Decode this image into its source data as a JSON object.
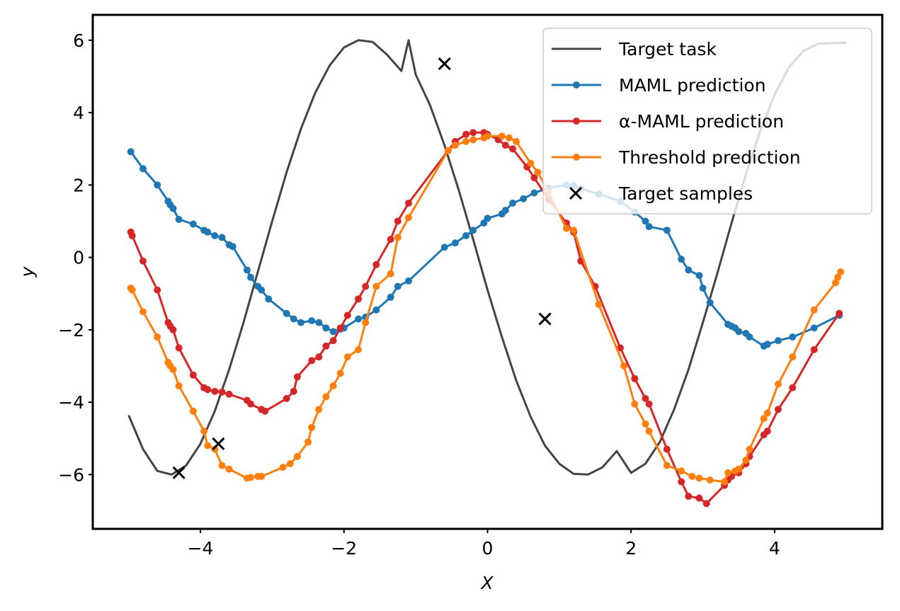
{
  "chart_data": {
    "type": "line",
    "title": "",
    "xlabel": "X",
    "ylabel": "y",
    "xlim": [
      -5.5,
      5.5
    ],
    "ylim": [
      -7.5,
      6.7
    ],
    "x_ticks": [
      -4,
      -2,
      0,
      2,
      4
    ],
    "y_ticks": [
      -6,
      -4,
      -2,
      0,
      2,
      4,
      6
    ],
    "x_tick_labels": [
      "−4",
      "−2",
      "0",
      "2",
      "4"
    ],
    "y_tick_labels": [
      "−6",
      "−4",
      "−2",
      "0",
      "2",
      "4",
      "6"
    ],
    "grid": false,
    "legend_position": "top-right",
    "target_task": {
      "name": "Target task",
      "color": "#444444",
      "x": [
        -5.0,
        -4.8,
        -4.6,
        -4.4,
        -4.2,
        -4.0,
        -3.8,
        -3.6,
        -3.4,
        -3.2,
        -3.0,
        -2.8,
        -2.6,
        -2.4,
        -2.2,
        -2.0,
        -1.8,
        -1.6,
        -1.4,
        -1.2,
        -1.1,
        -1.0,
        -0.8,
        -0.6,
        -0.4,
        -0.2,
        0.0,
        0.2,
        0.4,
        0.6,
        0.8,
        1.0,
        1.2,
        1.4,
        1.6,
        1.8,
        2.0,
        2.2,
        2.4,
        2.6,
        2.8,
        3.0,
        3.2,
        3.4,
        3.6,
        3.8,
        4.0,
        4.2,
        4.4,
        4.6,
        4.8,
        5.0
      ],
      "y": [
        -4.36,
        -5.3,
        -5.9,
        -6.0,
        -5.75,
        -5.15,
        -4.25,
        -3.1,
        -1.8,
        -0.4,
        1.0,
        2.35,
        3.55,
        4.55,
        5.3,
        5.8,
        6.0,
        5.95,
        5.6,
        5.15,
        6.0,
        5.05,
        4.2,
        3.1,
        1.85,
        0.5,
        -0.9,
        -2.2,
        -3.4,
        -4.4,
        -5.2,
        -5.7,
        -5.98,
        -6.0,
        -5.8,
        -5.35,
        -5.95,
        -5.7,
        -5.1,
        -4.2,
        -3.1,
        -1.8,
        -0.45,
        0.95,
        2.3,
        3.5,
        4.5,
        5.25,
        5.7,
        5.9,
        5.92,
        5.93
      ]
    },
    "series": [
      {
        "name": "MAML prediction",
        "color": "#1f77b4",
        "x": [
          -4.97,
          -4.8,
          -4.6,
          -4.45,
          -4.42,
          -4.38,
          -4.3,
          -4.1,
          -3.95,
          -3.9,
          -3.8,
          -3.7,
          -3.6,
          -3.55,
          -3.35,
          -3.3,
          -3.2,
          -3.15,
          -3.05,
          -2.8,
          -2.7,
          -2.6,
          -2.45,
          -2.35,
          -2.25,
          -2.15,
          -2.05,
          -2.0,
          -1.8,
          -1.7,
          -1.55,
          -1.35,
          -1.25,
          -1.1,
          -0.6,
          -0.45,
          -0.3,
          -0.2,
          -0.05,
          0.0,
          0.2,
          0.25,
          0.35,
          0.5,
          0.65,
          0.85,
          1.1,
          1.2,
          1.3,
          1.55,
          1.85,
          2.05,
          2.2,
          2.25,
          2.5,
          2.7,
          2.8,
          2.95,
          3.0,
          3.1,
          3.35,
          3.4,
          3.45,
          3.5,
          3.6,
          3.65,
          3.85,
          3.9,
          4.05,
          4.25,
          4.55,
          4.9
        ],
        "y": [
          2.92,
          2.45,
          2.0,
          1.55,
          1.45,
          1.35,
          1.05,
          0.92,
          0.75,
          0.7,
          0.6,
          0.55,
          0.35,
          0.3,
          -0.35,
          -0.55,
          -0.8,
          -0.9,
          -1.15,
          -1.55,
          -1.7,
          -1.8,
          -1.75,
          -1.8,
          -1.95,
          -2.05,
          -1.98,
          -1.95,
          -1.7,
          -1.65,
          -1.45,
          -1.1,
          -0.8,
          -0.65,
          0.28,
          0.4,
          0.6,
          0.75,
          0.95,
          1.08,
          1.2,
          1.3,
          1.5,
          1.62,
          1.78,
          1.92,
          2.0,
          1.98,
          1.9,
          1.75,
          1.55,
          1.25,
          1.0,
          0.85,
          0.75,
          -0.05,
          -0.35,
          -0.5,
          -0.85,
          -1.25,
          -1.85,
          -1.9,
          -1.95,
          -2.05,
          -2.1,
          -2.2,
          -2.45,
          -2.4,
          -2.3,
          -2.2,
          -1.95,
          -1.6
        ]
      },
      {
        "name": "α-MAML prediction",
        "color": "#d62728",
        "x": [
          -4.97,
          -4.95,
          -4.8,
          -4.6,
          -4.45,
          -4.42,
          -4.38,
          -4.3,
          -4.1,
          -3.95,
          -3.9,
          -3.8,
          -3.7,
          -3.6,
          -3.35,
          -3.3,
          -3.15,
          -3.1,
          -2.8,
          -2.7,
          -2.65,
          -2.45,
          -2.35,
          -2.25,
          -2.15,
          -2.05,
          -1.95,
          -1.8,
          -1.7,
          -1.55,
          -1.35,
          -1.25,
          -1.1,
          -0.55,
          -0.45,
          -0.3,
          -0.2,
          -0.05,
          0.0,
          0.15,
          0.25,
          0.35,
          0.55,
          0.65,
          0.85,
          1.1,
          1.2,
          1.3,
          1.5,
          1.85,
          2.05,
          2.2,
          2.25,
          2.5,
          2.7,
          2.8,
          2.95,
          3.05,
          3.3,
          3.35,
          3.4,
          3.5,
          3.6,
          3.65,
          3.85,
          3.9,
          4.05,
          4.25,
          4.55,
          4.9
        ],
        "y": [
          0.7,
          0.6,
          -0.1,
          -0.9,
          -1.8,
          -1.9,
          -2.0,
          -2.5,
          -3.25,
          -3.6,
          -3.65,
          -3.7,
          -3.72,
          -3.78,
          -3.95,
          -4.05,
          -4.2,
          -4.25,
          -3.9,
          -3.7,
          -3.3,
          -2.85,
          -2.75,
          -2.45,
          -2.3,
          -1.95,
          -1.6,
          -1.15,
          -0.8,
          -0.2,
          0.5,
          1.0,
          1.5,
          2.95,
          3.2,
          3.4,
          3.45,
          3.45,
          3.4,
          3.25,
          3.1,
          3.0,
          2.5,
          2.2,
          1.6,
          0.95,
          0.7,
          -0.1,
          -0.8,
          -2.5,
          -3.35,
          -3.9,
          -4.05,
          -5.3,
          -6.2,
          -6.6,
          -6.65,
          -6.8,
          -6.3,
          -6.15,
          -6.05,
          -5.95,
          -5.7,
          -5.5,
          -4.9,
          -4.8,
          -4.2,
          -3.6,
          -2.55,
          -1.55
        ]
      },
      {
        "name": "Threshold prediction",
        "color": "#ff7f0e",
        "x": [
          -4.97,
          -4.95,
          -4.8,
          -4.6,
          -4.45,
          -4.42,
          -4.38,
          -4.3,
          -4.1,
          -3.95,
          -3.9,
          -3.8,
          -3.7,
          -3.6,
          -3.35,
          -3.3,
          -3.2,
          -3.15,
          -2.85,
          -2.75,
          -2.65,
          -2.5,
          -2.45,
          -2.35,
          -2.25,
          -2.15,
          -2.05,
          -1.95,
          -1.8,
          -1.7,
          -1.55,
          -1.35,
          -1.25,
          -1.1,
          -0.55,
          -0.45,
          -0.3,
          -0.2,
          -0.05,
          0.0,
          0.2,
          0.3,
          0.4,
          0.6,
          0.7,
          0.85,
          1.1,
          1.2,
          1.55,
          1.9,
          2.05,
          2.2,
          2.25,
          2.5,
          2.7,
          2.85,
          2.95,
          3.1,
          3.3,
          3.35,
          3.45,
          3.5,
          3.6,
          3.65,
          3.85,
          3.9,
          4.05,
          4.25,
          4.55,
          4.85,
          4.88,
          4.92
        ],
        "y": [
          -0.85,
          -0.9,
          -1.5,
          -2.2,
          -2.9,
          -3.0,
          -3.1,
          -3.55,
          -4.25,
          -4.8,
          -5.2,
          -5.3,
          -5.75,
          -5.85,
          -6.1,
          -6.08,
          -6.05,
          -6.05,
          -5.8,
          -5.7,
          -5.5,
          -5.1,
          -4.7,
          -4.2,
          -3.85,
          -3.55,
          -3.2,
          -2.75,
          -2.55,
          -1.8,
          -0.8,
          -0.45,
          0.55,
          1.1,
          2.95,
          3.1,
          3.2,
          3.25,
          3.3,
          3.35,
          3.35,
          3.3,
          3.2,
          2.6,
          2.35,
          1.8,
          0.8,
          0.75,
          -1.3,
          -3.0,
          -4.05,
          -4.6,
          -4.8,
          -5.75,
          -5.9,
          -6.05,
          -6.1,
          -6.15,
          -6.2,
          -5.95,
          -5.9,
          -5.85,
          -5.6,
          -5.3,
          -4.45,
          -4.3,
          -3.5,
          -2.75,
          -1.45,
          -0.7,
          -0.55,
          -0.4
        ]
      }
    ],
    "target_samples": {
      "name": "Target samples",
      "color": "#000000",
      "marker": "x",
      "x": [
        -4.3,
        -3.75,
        -0.6,
        0.8
      ],
      "y": [
        -5.95,
        -5.15,
        5.35,
        -1.7
      ]
    }
  }
}
